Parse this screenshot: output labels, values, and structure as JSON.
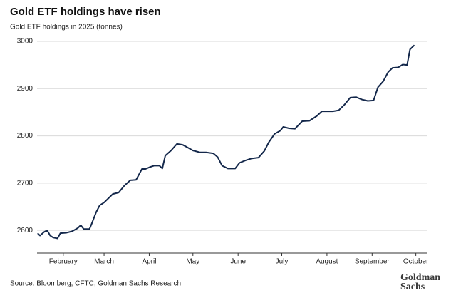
{
  "chart_data": {
    "type": "line",
    "title": "Gold ETF holdings have risen",
    "subtitle": "Gold ETF holdings in 2025 (tonnes)",
    "source": "Source: Bloomberg, CFTC, Goldman Sachs Research",
    "logo": [
      "Goldman",
      "Sachs"
    ],
    "x": [
      14.4,
      16,
      19,
      21,
      23,
      25,
      28,
      30,
      34,
      38,
      42,
      44,
      46,
      50,
      51.5,
      54.5,
      57,
      60,
      63,
      66,
      70,
      74,
      78,
      82,
      86,
      88.5,
      91.5,
      94.5,
      98,
      100,
      102,
      106,
      110,
      114,
      117,
      121,
      126,
      130,
      135,
      138,
      141,
      145,
      150,
      153,
      157,
      161,
      166,
      170,
      173,
      177,
      181,
      183,
      187,
      191,
      196,
      201,
      206,
      209.5,
      213.5,
      217,
      221,
      225,
      229,
      233,
      237,
      241,
      245,
      248,
      251.5,
      255,
      258,
      262,
      265,
      268,
      270,
      273
    ],
    "series": [
      {
        "name": "Gold ETF holdings",
        "color": "#14284b",
        "values": [
          2594,
          2589,
          2597,
          2600,
          2589,
          2585,
          2583,
          2594,
          2595,
          2598,
          2605,
          2611,
          2603,
          2603,
          2614,
          2638,
          2653,
          2659,
          2668,
          2677,
          2680,
          2695,
          2706,
          2707,
          2730,
          2730,
          2734,
          2737,
          2737,
          2731,
          2758,
          2769,
          2783,
          2781,
          2776,
          2769,
          2765,
          2765,
          2763,
          2755,
          2737,
          2731,
          2731,
          2743,
          2748,
          2752,
          2754,
          2768,
          2786,
          2804,
          2811,
          2819,
          2816,
          2815,
          2831,
          2832,
          2842,
          2852,
          2852,
          2852,
          2854,
          2866,
          2881,
          2882,
          2877,
          2874,
          2875,
          2903,
          2915,
          2935,
          2944,
          2945,
          2951,
          2950,
          2983,
          2992
        ]
      }
    ],
    "xlim": [
      14,
      282
    ],
    "xticks": [
      {
        "value": 32,
        "label": "February"
      },
      {
        "value": 60,
        "label": "March"
      },
      {
        "value": 91,
        "label": "April"
      },
      {
        "value": 121,
        "label": "May"
      },
      {
        "value": 152,
        "label": "June"
      },
      {
        "value": 182,
        "label": "July"
      },
      {
        "value": 213,
        "label": "August"
      },
      {
        "value": 244,
        "label": "September"
      },
      {
        "value": 274,
        "label": "October"
      }
    ],
    "ylim": [
      2552,
      3000
    ],
    "yticks": [
      2600,
      2700,
      2800,
      2900,
      3000
    ],
    "grid": true
  }
}
